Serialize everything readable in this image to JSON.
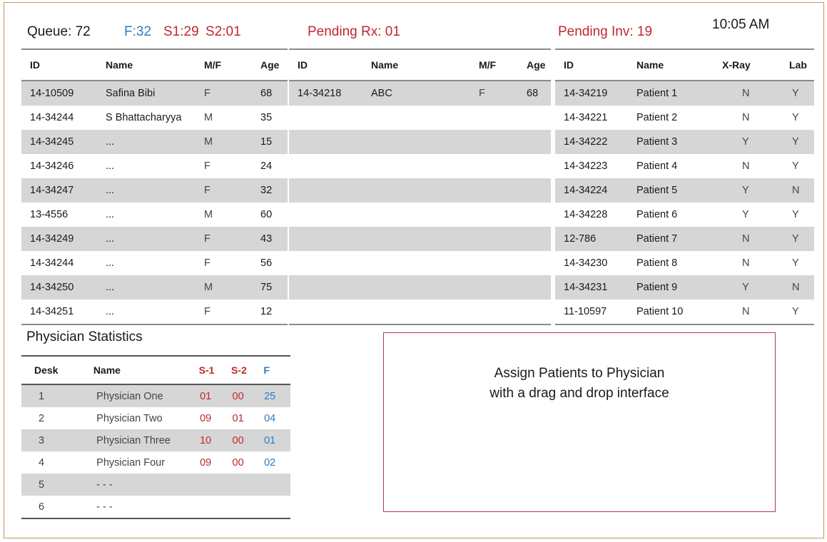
{
  "header": {
    "queue": "Queue: 72",
    "f_count": "F:32",
    "s1_count": "S1:29",
    "s2_count": "S2:01",
    "pending_rx": "Pending Rx: 01",
    "pending_inv": "Pending Inv: 19",
    "time": "10:05 AM"
  },
  "queue_table": {
    "columns": [
      "ID",
      "Name",
      "M/F",
      "Age"
    ],
    "rows": [
      [
        "14-10509",
        "Safina Bibi",
        "F",
        "68"
      ],
      [
        "14-34244",
        "S Bhattacharyya",
        "M",
        "35"
      ],
      [
        "14-34245",
        "...",
        "M",
        "15"
      ],
      [
        "14-34246",
        "...",
        "F",
        "24"
      ],
      [
        "14-34247",
        "...",
        "F",
        "32"
      ],
      [
        "13-4556",
        "...",
        "M",
        "60"
      ],
      [
        "14-34249",
        "...",
        "F",
        "43"
      ],
      [
        "14-34244",
        "...",
        "F",
        "56"
      ],
      [
        "14-34250",
        "...",
        "M",
        "75"
      ],
      [
        "14-34251",
        "...",
        "F",
        "12"
      ]
    ]
  },
  "rx_table": {
    "columns": [
      "ID",
      "Name",
      "M/F",
      "Age"
    ],
    "rows": [
      [
        "14-34218",
        "ABC",
        "F",
        "68"
      ],
      [
        "",
        "",
        "",
        ""
      ],
      [
        "",
        "",
        "",
        ""
      ],
      [
        "",
        "",
        "",
        ""
      ],
      [
        "",
        "",
        "",
        ""
      ],
      [
        "",
        "",
        "",
        ""
      ],
      [
        "",
        "",
        "",
        ""
      ],
      [
        "",
        "",
        "",
        ""
      ],
      [
        "",
        "",
        "",
        ""
      ],
      [
        "",
        "",
        "",
        ""
      ]
    ]
  },
  "inv_table": {
    "columns": [
      "ID",
      "Name",
      "X-Ray",
      "Lab"
    ],
    "rows": [
      [
        "14-34219",
        "Patient 1",
        "N",
        "Y"
      ],
      [
        "14-34221",
        "Patient 2",
        "N",
        "Y"
      ],
      [
        "14-34222",
        "Patient 3",
        "Y",
        "Y"
      ],
      [
        "14-34223",
        "Patient 4",
        "N",
        "Y"
      ],
      [
        "14-34224",
        "Patient 5",
        "Y",
        "N"
      ],
      [
        "14-34228",
        "Patient 6",
        "Y",
        "Y"
      ],
      [
        "12-786",
        "Patient 7",
        "N",
        "Y"
      ],
      [
        "14-34230",
        "Patient 8",
        "N",
        "Y"
      ],
      [
        "14-34231",
        "Patient 9",
        "Y",
        "N"
      ],
      [
        "11-10597",
        "Patient 10",
        "N",
        "Y"
      ]
    ]
  },
  "physician_stats": {
    "title": "Physician Statistics",
    "columns": [
      "Desk",
      "Name",
      "S-1",
      "S-2",
      "F"
    ],
    "rows": [
      [
        "1",
        "Physician One",
        "01",
        "00",
        "25"
      ],
      [
        "2",
        "Physician Two",
        "09",
        "01",
        "04"
      ],
      [
        "3",
        "Physician Three",
        "10",
        "00",
        "01"
      ],
      [
        "4",
        "Physician Four",
        "09",
        "00",
        "02"
      ],
      [
        "5",
        "- - -",
        "",
        "",
        ""
      ],
      [
        "6",
        "- - -",
        "",
        "",
        ""
      ]
    ]
  },
  "assign_panel": {
    "line1": "Assign Patients to Physician",
    "line2": "with a drag and drop interface"
  },
  "colors": {
    "red": "#c0272d",
    "blue": "#2a7cc7",
    "row_alt": "#d6d6d6",
    "frame": "#c8945a"
  }
}
